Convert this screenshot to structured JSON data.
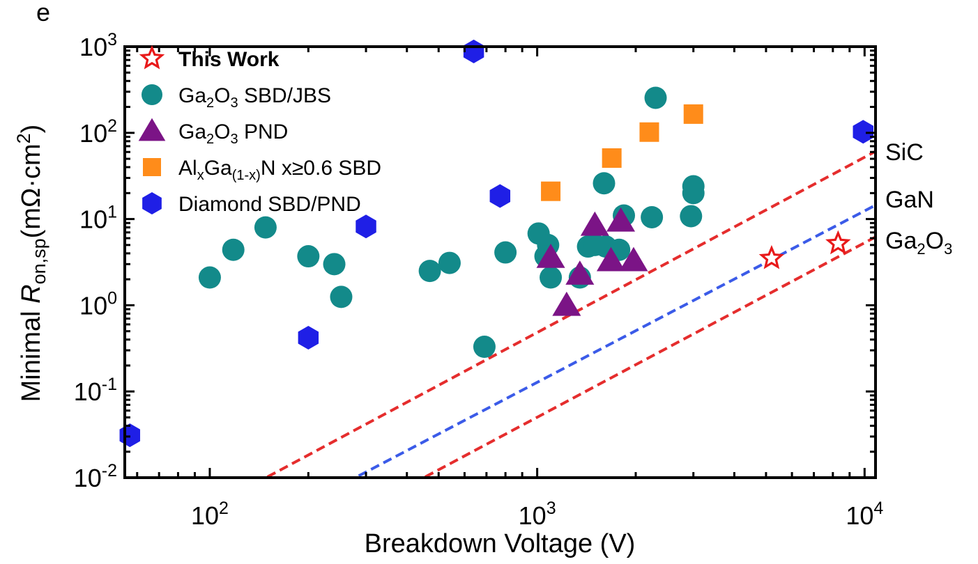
{
  "chart_data": {
    "type": "scatter",
    "panel_label": "e",
    "title": "",
    "xlabel": "Breakdown Voltage (V)",
    "ylabel": {
      "prefix": "Minimal ",
      "symbol": "R",
      "subscript": "on,sp",
      "unit_open": "(mΩ·cm",
      "unit_sup": "2",
      "unit_close": ")"
    },
    "xscale": "log",
    "yscale": "log",
    "xlim": [
      55,
      10800
    ],
    "ylim": [
      0.01,
      1000
    ],
    "x_ticks": [
      {
        "value": 100,
        "base": "10",
        "exp": "2"
      },
      {
        "value": 1000,
        "base": "10",
        "exp": "3"
      },
      {
        "value": 10000,
        "base": "10",
        "exp": "4"
      }
    ],
    "y_ticks": [
      {
        "value": 0.01,
        "base": "10",
        "exp": "-2"
      },
      {
        "value": 0.1,
        "base": "10",
        "exp": "-1"
      },
      {
        "value": 1,
        "base": "10",
        "exp": "0"
      },
      {
        "value": 10,
        "base": "10",
        "exp": "1"
      },
      {
        "value": 100,
        "base": "10",
        "exp": "2"
      },
      {
        "value": 1000,
        "base": "10",
        "exp": "3"
      }
    ],
    "grid": false,
    "legend_position": "top-left",
    "series": [
      {
        "name": "This Work",
        "legend_parts": [
          {
            "t": "This Work"
          }
        ],
        "bold": true,
        "marker": "star",
        "color": "#e8191a",
        "filled": false,
        "points": [
          [
            5200,
            3.5
          ],
          [
            8300,
            5.2
          ]
        ]
      },
      {
        "name": "Ga2O3 SBD/JBS",
        "legend_parts": [
          {
            "t": "Ga"
          },
          {
            "t": "2",
            "sub": true
          },
          {
            "t": "O"
          },
          {
            "t": "3",
            "sub": true
          },
          {
            "t": " SBD/JBS"
          }
        ],
        "marker": "circle",
        "color": "#138a8a",
        "filled": true,
        "points": [
          [
            100,
            2.1
          ],
          [
            118,
            4.4
          ],
          [
            148,
            8.0
          ],
          [
            200,
            3.7
          ],
          [
            240,
            3.0
          ],
          [
            252,
            1.25
          ],
          [
            470,
            2.5
          ],
          [
            540,
            3.1
          ],
          [
            690,
            0.33
          ],
          [
            800,
            4.1
          ],
          [
            1010,
            6.8
          ],
          [
            1080,
            5.0
          ],
          [
            1060,
            3.7
          ],
          [
            1100,
            2.1
          ],
          [
            1350,
            2.1
          ],
          [
            1430,
            4.8
          ],
          [
            1500,
            5.0
          ],
          [
            1600,
            26
          ],
          [
            1620,
            4.8
          ],
          [
            1780,
            4.4
          ],
          [
            1840,
            11
          ],
          [
            2240,
            10.5
          ],
          [
            2300,
            255
          ],
          [
            2950,
            10.8
          ],
          [
            3000,
            24
          ],
          [
            3000,
            20
          ]
        ]
      },
      {
        "name": "Ga2O3 PND",
        "legend_parts": [
          {
            "t": "Ga"
          },
          {
            "t": "2",
            "sub": true
          },
          {
            "t": "O"
          },
          {
            "t": "3",
            "sub": true
          },
          {
            "t": " PND"
          }
        ],
        "marker": "triangle",
        "color": "#7b1486",
        "filled": true,
        "points": [
          [
            1100,
            3.6
          ],
          [
            1230,
            1.0
          ],
          [
            1350,
            2.3
          ],
          [
            1500,
            8.5
          ],
          [
            1680,
            3.3
          ],
          [
            1800,
            9.5
          ],
          [
            1970,
            3.3
          ]
        ]
      },
      {
        "name": "AlxGa(1-x)N x≥0.6 SBD",
        "legend_parts": [
          {
            "t": "Al"
          },
          {
            "t": "x",
            "sub": true
          },
          {
            "t": "Ga"
          },
          {
            "t": "(1-x)",
            "sub": true
          },
          {
            "t": "N x≥0.6 SBD"
          }
        ],
        "marker": "square",
        "color": "#ff8c1a",
        "filled": true,
        "points": [
          [
            1100,
            21
          ],
          [
            1690,
            51
          ],
          [
            2200,
            102
          ],
          [
            3000,
            165
          ]
        ]
      },
      {
        "name": "Diamond SBD/PND",
        "legend_parts": [
          {
            "t": "Diamond SBD/PND"
          }
        ],
        "marker": "hexagon",
        "color": "#1f1fe6",
        "filled": true,
        "points": [
          [
            57,
            0.031
          ],
          [
            200,
            0.42
          ],
          [
            300,
            8.2
          ],
          [
            640,
            880
          ],
          [
            770,
            18.5
          ],
          [
            9900,
            103
          ]
        ]
      }
    ],
    "limit_lines": [
      {
        "label": "SiC",
        "label_parts": [
          {
            "t": "SiC"
          }
        ],
        "color": "#e52d2d",
        "x_range": [
          150,
          10800
        ],
        "y_range": [
          0.0102,
          61
        ]
      },
      {
        "label": "GaN",
        "label_parts": [
          {
            "t": "GaN"
          }
        ],
        "color": "#3b5be8",
        "x_range": [
          285,
          10800
        ],
        "y_range": [
          0.0105,
          14.5
        ]
      },
      {
        "label": "Ga2O3",
        "label_parts": [
          {
            "t": "Ga"
          },
          {
            "t": "2",
            "sub": true
          },
          {
            "t": "O"
          },
          {
            "t": "3",
            "sub": true
          }
        ],
        "color": "#e52d2d",
        "x_range": [
          455,
          10800
        ],
        "y_range": [
          0.0102,
          6.2
        ]
      }
    ]
  }
}
